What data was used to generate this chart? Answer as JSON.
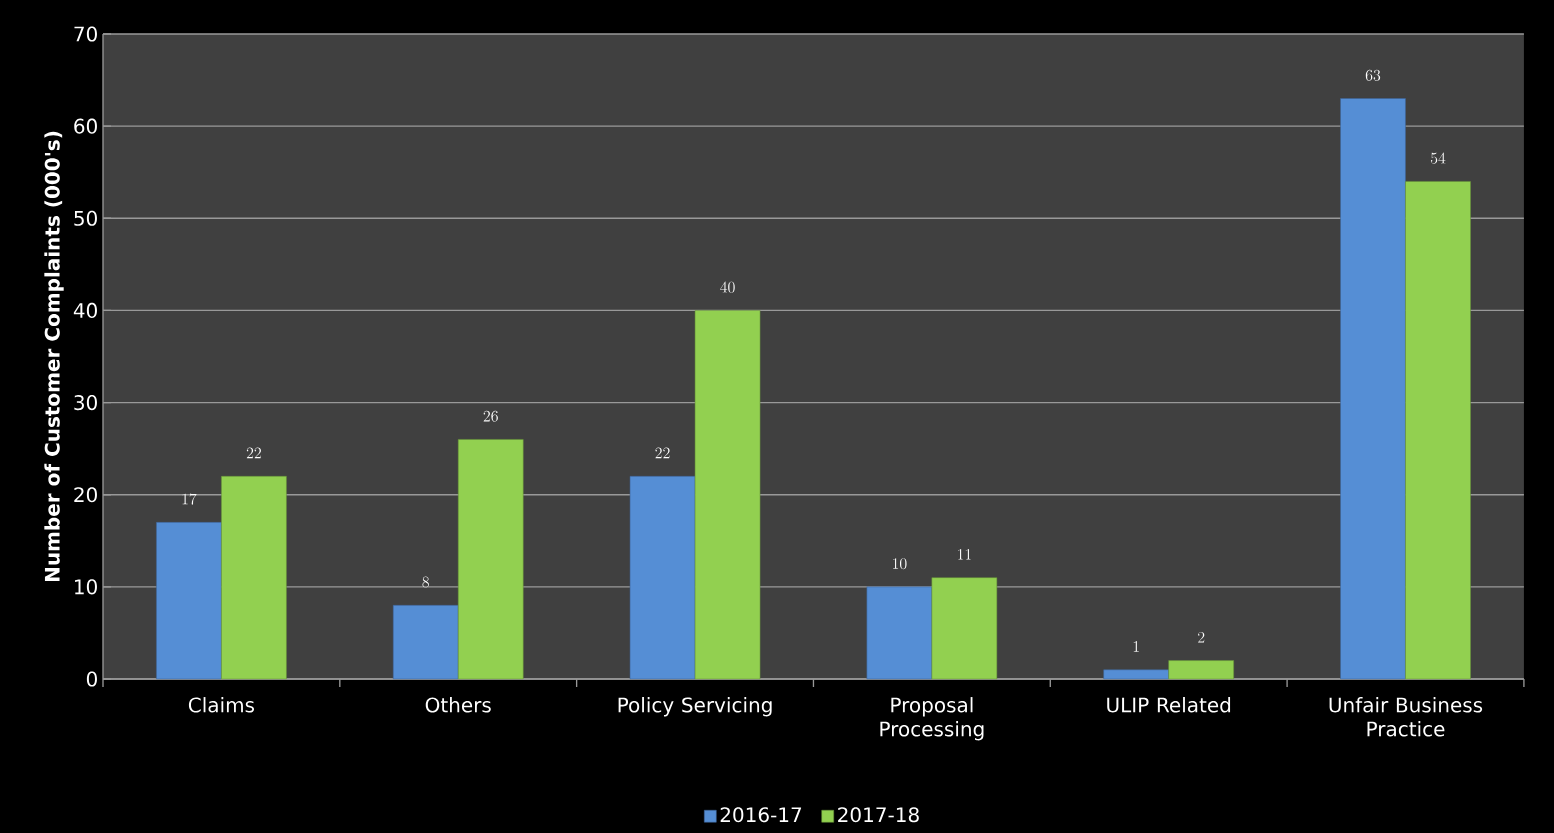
{
  "chart_data": {
    "type": "bar",
    "ylabel": "Number of Customer Complaints (000's)",
    "categories": [
      "Claims",
      "Others",
      "Policy Servicing",
      "Proposal Processing",
      "ULIP Related",
      "Unfair Business Practice"
    ],
    "series": [
      {
        "name": "2016-17",
        "color": "#558ed5",
        "values": [
          17,
          8,
          22,
          10,
          1,
          63
        ]
      },
      {
        "name": "2017-18",
        "color": "#92d050",
        "values": [
          22,
          26,
          40,
          11,
          2,
          54
        ]
      }
    ],
    "ylim": [
      0,
      70
    ],
    "yticks": [
      0,
      10,
      20,
      30,
      40,
      50,
      60,
      70
    ],
    "grid": "y",
    "legend": "bottom",
    "data_labels": true
  }
}
